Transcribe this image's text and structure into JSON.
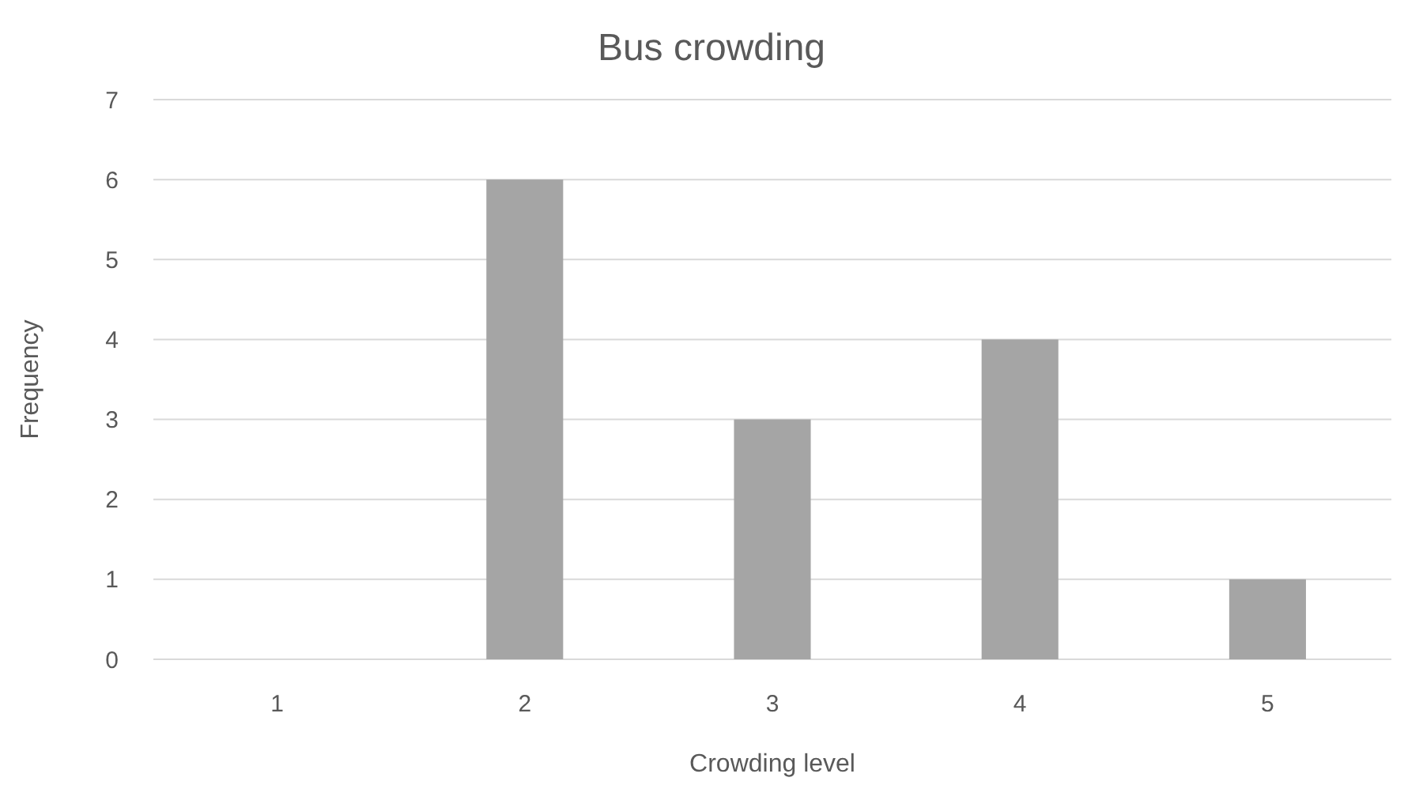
{
  "chart_data": {
    "type": "bar",
    "title": "Bus crowding",
    "xlabel": "Crowding level",
    "ylabel": "Frequency",
    "categories": [
      "1",
      "2",
      "3",
      "4",
      "5"
    ],
    "values": [
      0,
      6,
      3,
      4,
      1
    ],
    "color": "#a5a5a5",
    "ylim": [
      0,
      7
    ],
    "yticks": [
      0,
      1,
      2,
      3,
      4,
      5,
      6,
      7
    ],
    "grid": "y"
  }
}
